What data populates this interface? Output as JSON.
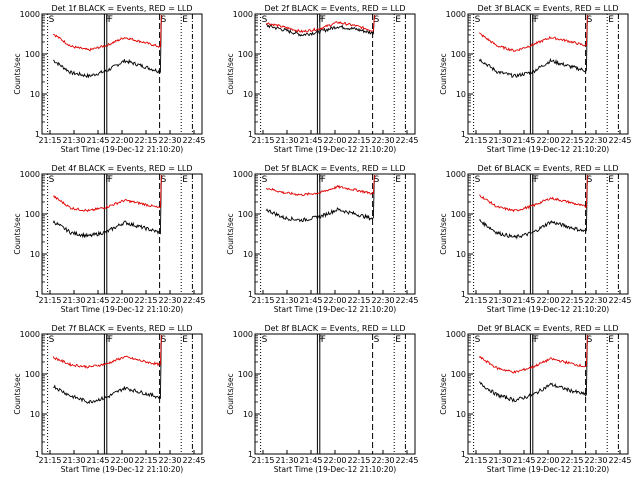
{
  "colors": {
    "events": "#000000",
    "lld": "#e00000",
    "axes": "#000000",
    "background": "#ffffff"
  },
  "x_ticks": [
    "21:15",
    "21:30",
    "21:45",
    "22:00",
    "22:15",
    "22:30",
    "22:45"
  ],
  "y_ticks": [
    "1",
    "10",
    "100",
    "1000"
  ],
  "ylabel": "Counts/sec",
  "xlabel": "Start Time (19-Dec-12 21:10:20)",
  "markers": [
    "S",
    "F",
    "F",
    "S",
    "E"
  ],
  "chart_data": [
    {
      "type": "line",
      "title": "Det 1f BLACK = Events, RED = LLD",
      "yscale": "log",
      "ylim": [
        1,
        1000
      ],
      "xlim": [
        "21:10",
        "22:50"
      ],
      "flat": false,
      "series": [
        {
          "name": "Events",
          "color": "#000000",
          "values": [
            70,
            34,
            28,
            38,
            68,
            50,
            36
          ]
        },
        {
          "name": "LLD",
          "color": "#e00000",
          "values": [
            320,
            155,
            125,
            165,
            260,
            200,
            150
          ]
        }
      ]
    },
    {
      "type": "line",
      "title": "Det 2f BLACK = Events, RED = LLD",
      "yscale": "log",
      "ylim": [
        1,
        1000
      ],
      "xlim": [
        "21:10",
        "22:50"
      ],
      "flat": true,
      "series": [
        {
          "name": "Events",
          "color": "#000000",
          "values": [
            520,
            400,
            300,
            360,
            490,
            420,
            330
          ]
        },
        {
          "name": "LLD",
          "color": "#e00000",
          "values": [
            600,
            470,
            360,
            430,
            620,
            510,
            380
          ]
        }
      ]
    },
    {
      "type": "line",
      "title": "Det 3f BLACK = Events, RED = LLD",
      "yscale": "log",
      "ylim": [
        1,
        1000
      ],
      "xlim": [
        "21:10",
        "22:50"
      ],
      "flat": false,
      "series": [
        {
          "name": "Events",
          "color": "#000000",
          "values": [
            75,
            36,
            28,
            36,
            68,
            50,
            38
          ]
        },
        {
          "name": "LLD",
          "color": "#e00000",
          "values": [
            330,
            160,
            120,
            170,
            260,
            210,
            160
          ]
        }
      ]
    },
    {
      "type": "line",
      "title": "Det 4f BLACK = Events, RED = LLD",
      "yscale": "log",
      "ylim": [
        1,
        1000
      ],
      "xlim": [
        "21:10",
        "22:50"
      ],
      "flat": false,
      "series": [
        {
          "name": "Events",
          "color": "#000000",
          "values": [
            65,
            34,
            28,
            36,
            62,
            46,
            34
          ]
        },
        {
          "name": "LLD",
          "color": "#e00000",
          "values": [
            280,
            140,
            120,
            150,
            220,
            180,
            140
          ]
        }
      ]
    },
    {
      "type": "line",
      "title": "Det 5f BLACK = Events, RED = LLD",
      "yscale": "log",
      "ylim": [
        1,
        1000
      ],
      "xlim": [
        "21:10",
        "22:50"
      ],
      "flat": false,
      "series": [
        {
          "name": "Events",
          "color": "#000000",
          "values": [
            130,
            80,
            70,
            85,
            130,
            100,
            75
          ]
        },
        {
          "name": "LLD",
          "color": "#e00000",
          "values": [
            450,
            340,
            300,
            340,
            480,
            400,
            320
          ]
        }
      ]
    },
    {
      "type": "line",
      "title": "Det 6f BLACK = Events, RED = LLD",
      "yscale": "log",
      "ylim": [
        1,
        1000
      ],
      "xlim": [
        "21:10",
        "22:50"
      ],
      "flat": false,
      "series": [
        {
          "name": "Events",
          "color": "#000000",
          "values": [
            70,
            34,
            26,
            34,
            64,
            48,
            36
          ]
        },
        {
          "name": "LLD",
          "color": "#e00000",
          "values": [
            300,
            150,
            120,
            160,
            250,
            200,
            150
          ]
        }
      ]
    },
    {
      "type": "line",
      "title": "Det 7f BLACK = Events, RED = LLD",
      "yscale": "log",
      "ylim": [
        1,
        1000
      ],
      "xlim": [
        "21:10",
        "22:50"
      ],
      "flat": false,
      "series": [
        {
          "name": "Events",
          "color": "#000000",
          "values": [
            50,
            28,
            20,
            26,
            45,
            34,
            26
          ]
        },
        {
          "name": "LLD",
          "color": "#e00000",
          "values": [
            260,
            170,
            150,
            180,
            270,
            210,
            170
          ]
        }
      ]
    },
    {
      "type": "line",
      "title": "Det 8f BLACK = Events, RED = LLD",
      "yscale": "log",
      "ylim": [
        1,
        1000
      ],
      "xlim": [
        "21:10",
        "22:50"
      ],
      "flat": false,
      "series": []
    },
    {
      "type": "line",
      "title": "Det 9f BLACK = Events, RED = LLD",
      "yscale": "log",
      "ylim": [
        1,
        1000
      ],
      "xlim": [
        "21:10",
        "22:50"
      ],
      "flat": false,
      "series": [
        {
          "name": "Events",
          "color": "#000000",
          "values": [
            60,
            30,
            22,
            30,
            55,
            40,
            30
          ]
        },
        {
          "name": "LLD",
          "color": "#e00000",
          "values": [
            270,
            140,
            110,
            150,
            240,
            190,
            150
          ]
        }
      ]
    }
  ]
}
